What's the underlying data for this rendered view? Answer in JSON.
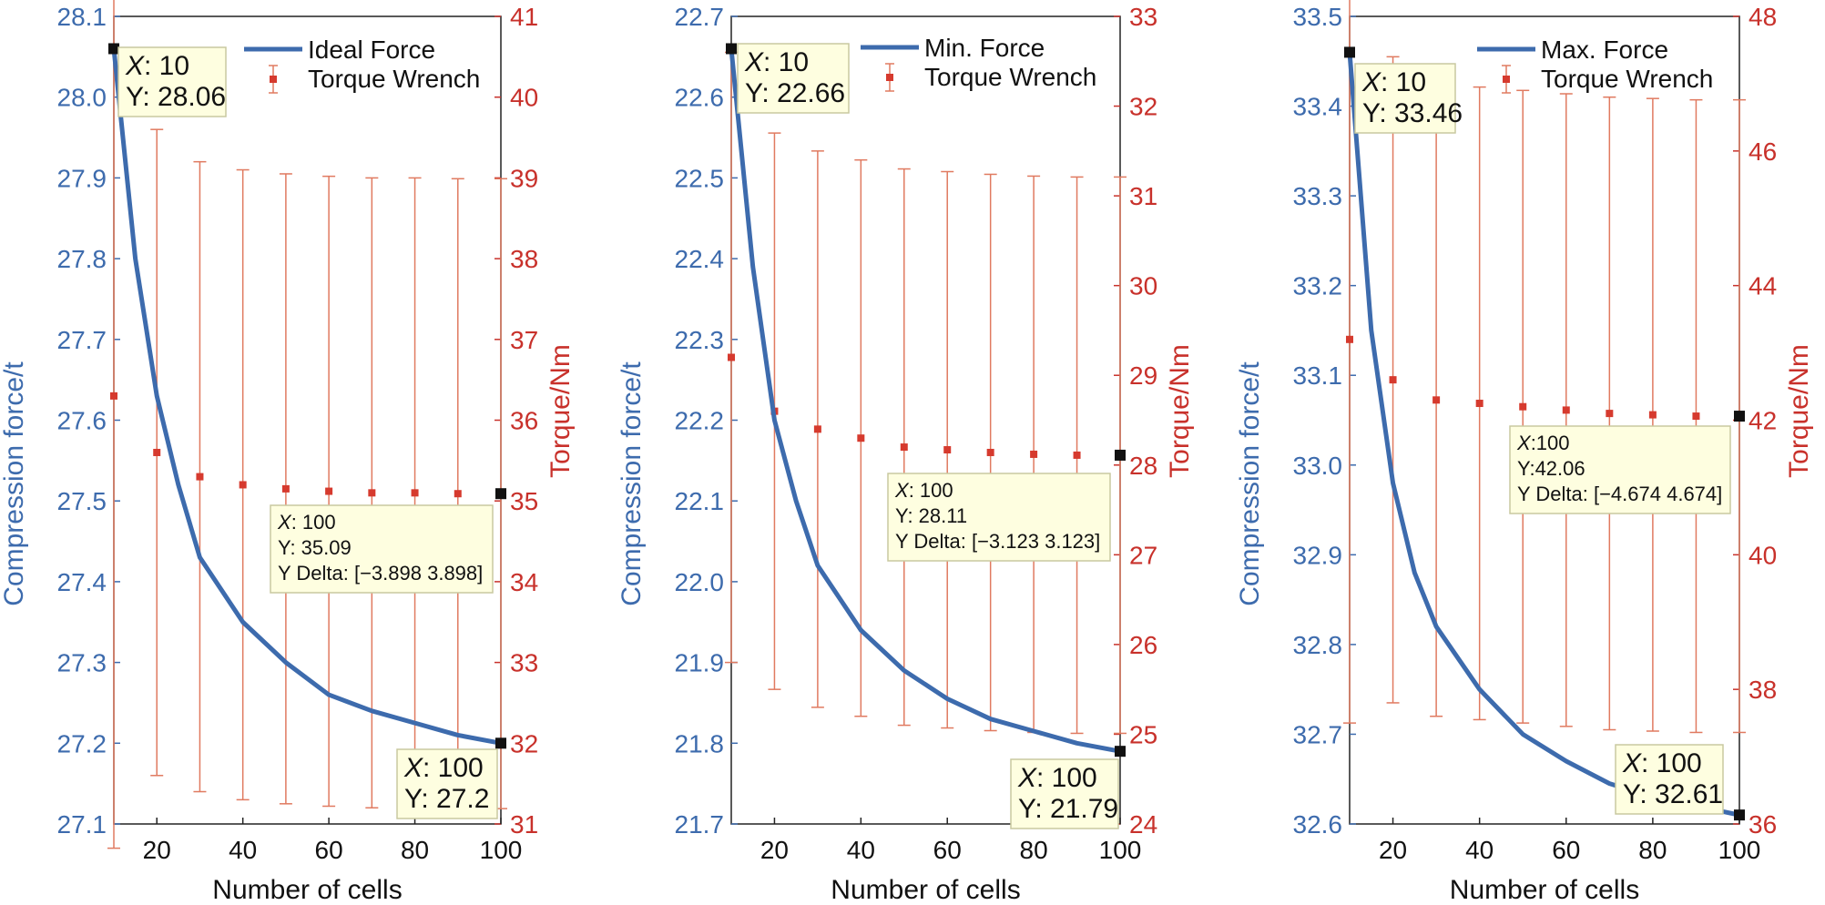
{
  "colors": {
    "force_line": "#3d6bad",
    "torque": "#d63a2e",
    "errorbar": "#e07a60",
    "tooltip_bg": "#fefee0",
    "marker": "#111111"
  },
  "chart_data": [
    {
      "type": "line",
      "xlabel": "Number of cells",
      "ylabel_left": "Compression force/t",
      "ylabel_right": "Torque/Nm",
      "xlim": [
        10,
        100
      ],
      "ylim_left": [
        27.1,
        28.1
      ],
      "ylim_right": [
        31,
        41
      ],
      "x_ticks": [
        20,
        40,
        60,
        80,
        100
      ],
      "y_ticks_left": [
        27.1,
        27.2,
        27.3,
        27.4,
        27.5,
        27.6,
        27.7,
        27.8,
        27.9,
        28.0,
        28.1
      ],
      "y_ticks_right": [
        31,
        32,
        33,
        34,
        35,
        36,
        37,
        38,
        39,
        40,
        41
      ],
      "legend": {
        "placement": "top-right",
        "entries": [
          "Ideal Force",
          "Torque Wrench"
        ]
      },
      "series": [
        {
          "name": "Ideal Force",
          "axis": "left",
          "x": [
            10,
            15,
            20,
            25,
            30,
            40,
            50,
            60,
            70,
            80,
            90,
            100
          ],
          "y": [
            28.06,
            27.8,
            27.63,
            27.52,
            27.43,
            27.35,
            27.3,
            27.26,
            27.24,
            27.225,
            27.21,
            27.2
          ]
        },
        {
          "name": "Torque Wrench",
          "axis": "right",
          "x": [
            10,
            20,
            30,
            40,
            50,
            60,
            70,
            80,
            90,
            100
          ],
          "y": [
            36.3,
            35.6,
            35.3,
            35.2,
            35.15,
            35.12,
            35.1,
            35.1,
            35.09,
            35.09
          ],
          "error": [
            5.6,
            4.0,
            3.9,
            3.9,
            3.9,
            3.9,
            3.9,
            3.9,
            3.9,
            3.9
          ]
        }
      ],
      "tooltips": [
        {
          "lines": [
            {
              "k": "X",
              "v": ": 10"
            },
            {
              "k": "",
              "v": "Y: 28.06"
            }
          ],
          "style": "big"
        },
        {
          "lines": [
            {
              "k": "X",
              "v": ": 100"
            },
            {
              "k": "",
              "v": "Y: 35.09"
            },
            {
              "k": "",
              "v": "Y Delta: [−3.898  3.898]"
            }
          ],
          "style": "small"
        },
        {
          "lines": [
            {
              "k": "X",
              "v": ": 100"
            },
            {
              "k": "",
              "v": "Y: 27.2"
            }
          ],
          "style": "big"
        }
      ]
    },
    {
      "type": "line",
      "xlabel": "Number of cells",
      "ylabel_left": "Compression force/t",
      "ylabel_right": "Torque/Nm",
      "xlim": [
        10,
        100
      ],
      "ylim_left": [
        21.7,
        22.7
      ],
      "ylim_right": [
        24,
        33
      ],
      "x_ticks": [
        20,
        40,
        60,
        80,
        100
      ],
      "y_ticks_left": [
        21.7,
        21.8,
        21.9,
        22.0,
        22.1,
        22.2,
        22.3,
        22.4,
        22.5,
        22.6,
        22.7
      ],
      "y_ticks_right": [
        24,
        25,
        26,
        27,
        28,
        29,
        30,
        31,
        32,
        33
      ],
      "legend": {
        "placement": "top-right",
        "entries": [
          "Min. Force",
          "Torque Wrench"
        ]
      },
      "series": [
        {
          "name": "Min. Force",
          "axis": "left",
          "x": [
            10,
            15,
            20,
            25,
            30,
            40,
            50,
            60,
            70,
            80,
            90,
            100
          ],
          "y": [
            22.66,
            22.39,
            22.2,
            22.1,
            22.02,
            21.94,
            21.89,
            21.855,
            21.83,
            21.815,
            21.8,
            21.79
          ]
        },
        {
          "name": "Torque Wrench",
          "axis": "right",
          "x": [
            10,
            20,
            30,
            40,
            50,
            60,
            70,
            80,
            90,
            100
          ],
          "y": [
            29.2,
            28.6,
            28.4,
            28.3,
            28.2,
            28.17,
            28.14,
            28.12,
            28.11,
            28.11
          ],
          "error": [
            3.4,
            3.1,
            3.1,
            3.1,
            3.1,
            3.1,
            3.1,
            3.1,
            3.1,
            3.1
          ]
        }
      ],
      "tooltips": [
        {
          "lines": [
            {
              "k": "X",
              "v": ": 10"
            },
            {
              "k": "",
              "v": "Y: 22.66"
            }
          ],
          "style": "big"
        },
        {
          "lines": [
            {
              "k": "X",
              "v": ": 100"
            },
            {
              "k": "",
              "v": "Y: 28.11"
            },
            {
              "k": "",
              "v": "Y Delta: [−3.123  3.123]"
            }
          ],
          "style": "small"
        },
        {
          "lines": [
            {
              "k": "X",
              "v": ": 100"
            },
            {
              "k": "",
              "v": "Y: 21.79"
            }
          ],
          "style": "big"
        }
      ]
    },
    {
      "type": "line",
      "xlabel": "Number of cells",
      "ylabel_left": "Compression force/t",
      "ylabel_right": "Torque/Nm",
      "xlim": [
        10,
        100
      ],
      "ylim_left": [
        32.6,
        33.5
      ],
      "ylim_right": [
        36,
        48
      ],
      "x_ticks": [
        20,
        40,
        60,
        80,
        100
      ],
      "y_ticks_left": [
        32.6,
        32.7,
        32.8,
        32.9,
        33.0,
        33.1,
        33.2,
        33.3,
        33.4,
        33.5
      ],
      "y_ticks_right": [
        36,
        38,
        40,
        42,
        44,
        46,
        48
      ],
      "legend": {
        "placement": "top-right",
        "entries": [
          "Max. Force",
          "Torque Wrench"
        ]
      },
      "series": [
        {
          "name": "Max. Force",
          "axis": "left",
          "x": [
            10,
            15,
            20,
            25,
            30,
            40,
            50,
            60,
            70,
            80,
            90,
            100
          ],
          "y": [
            33.46,
            33.15,
            32.98,
            32.88,
            32.82,
            32.75,
            32.7,
            32.67,
            32.645,
            32.63,
            32.62,
            32.61
          ]
        },
        {
          "name": "Torque Wrench",
          "axis": "right",
          "x": [
            10,
            20,
            30,
            40,
            50,
            60,
            70,
            80,
            90,
            100
          ],
          "y": [
            43.2,
            42.6,
            42.3,
            42.25,
            42.2,
            42.15,
            42.1,
            42.08,
            42.06,
            42.06
          ],
          "error": [
            5.7,
            4.8,
            4.7,
            4.7,
            4.7,
            4.7,
            4.7,
            4.7,
            4.7,
            4.7
          ]
        }
      ],
      "tooltips": [
        {
          "lines": [
            {
              "k": "X",
              "v": ": 10"
            },
            {
              "k": "",
              "v": "Y: 33.46"
            }
          ],
          "style": "big"
        },
        {
          "lines": [
            {
              "k": "X",
              "v": ":100"
            },
            {
              "k": "",
              "v": "Y:42.06"
            },
            {
              "k": "",
              "v": "Y Delta: [−4.674  4.674]"
            }
          ],
          "style": "small"
        },
        {
          "lines": [
            {
              "k": "X",
              "v": ": 100"
            },
            {
              "k": "",
              "v": "Y: 32.61"
            }
          ],
          "style": "big"
        }
      ]
    }
  ]
}
